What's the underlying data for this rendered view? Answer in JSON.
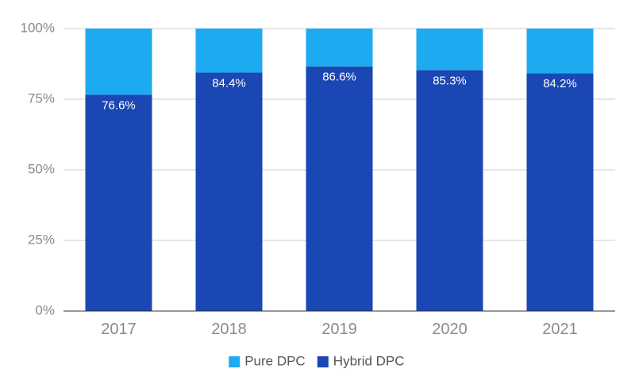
{
  "chart_data": {
    "type": "bar",
    "stacked": true,
    "normalized": true,
    "categories": [
      "2017",
      "2018",
      "2019",
      "2020",
      "2021"
    ],
    "series": [
      {
        "name": "Hybrid DPC",
        "values": [
          76.6,
          84.4,
          86.6,
          85.3,
          84.2
        ],
        "labels": [
          "76.6%",
          "84.4%",
          "86.6%",
          "85.3%",
          "84.2%"
        ],
        "color": "#1a47b3"
      },
      {
        "name": "Pure DPC",
        "values": [
          23.4,
          15.6,
          13.4,
          14.7,
          15.8
        ],
        "color": "#1eaaf1"
      }
    ],
    "legend_order": [
      "Pure DPC",
      "Hybrid DPC"
    ],
    "ylim": [
      0,
      100
    ],
    "yticks": [
      0,
      25,
      50,
      75,
      100
    ],
    "ytick_labels": [
      "0%",
      "25%",
      "50%",
      "75%",
      "100%"
    ],
    "title": "",
    "xlabel": "",
    "ylabel": "",
    "grid": true,
    "legend_position": "bottom"
  }
}
